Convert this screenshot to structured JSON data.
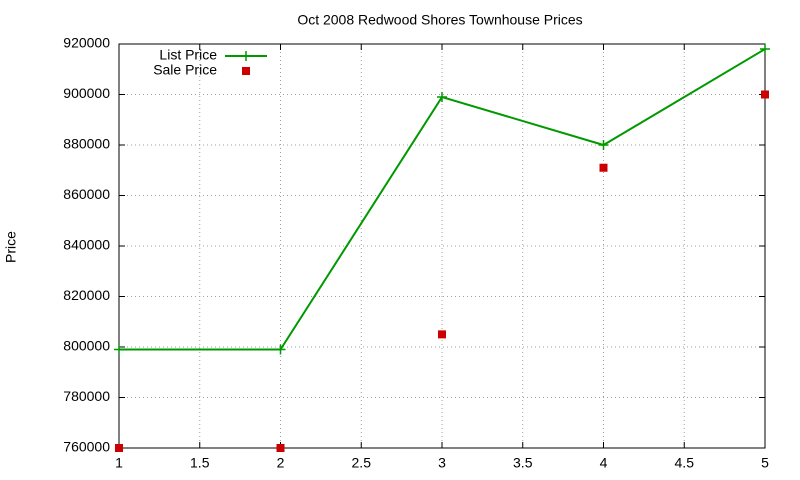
{
  "chart_data": {
    "type": "line",
    "title": "Oct 2008 Redwood Shores Townhouse Prices",
    "y_label": "Price",
    "x": [
      1,
      2,
      3,
      4,
      5
    ],
    "series": [
      {
        "name": "List Price",
        "color": "#009900",
        "mode": "linespoints",
        "values": [
          799000,
          799000,
          899000,
          880000,
          918000
        ]
      },
      {
        "name": "Sale Price",
        "color": "#cc0000",
        "mode": "points",
        "values": [
          760000,
          760000,
          805000,
          871000,
          900000
        ]
      }
    ],
    "xlim": [
      1,
      5
    ],
    "xticks": [
      1,
      1.5,
      2,
      2.5,
      3,
      3.5,
      4,
      4.5,
      5
    ],
    "ylim": [
      760000,
      920000
    ],
    "yticks": [
      760000,
      780000,
      800000,
      820000,
      840000,
      860000,
      880000,
      900000,
      920000
    ],
    "grid": true,
    "legend": "top-left"
  }
}
